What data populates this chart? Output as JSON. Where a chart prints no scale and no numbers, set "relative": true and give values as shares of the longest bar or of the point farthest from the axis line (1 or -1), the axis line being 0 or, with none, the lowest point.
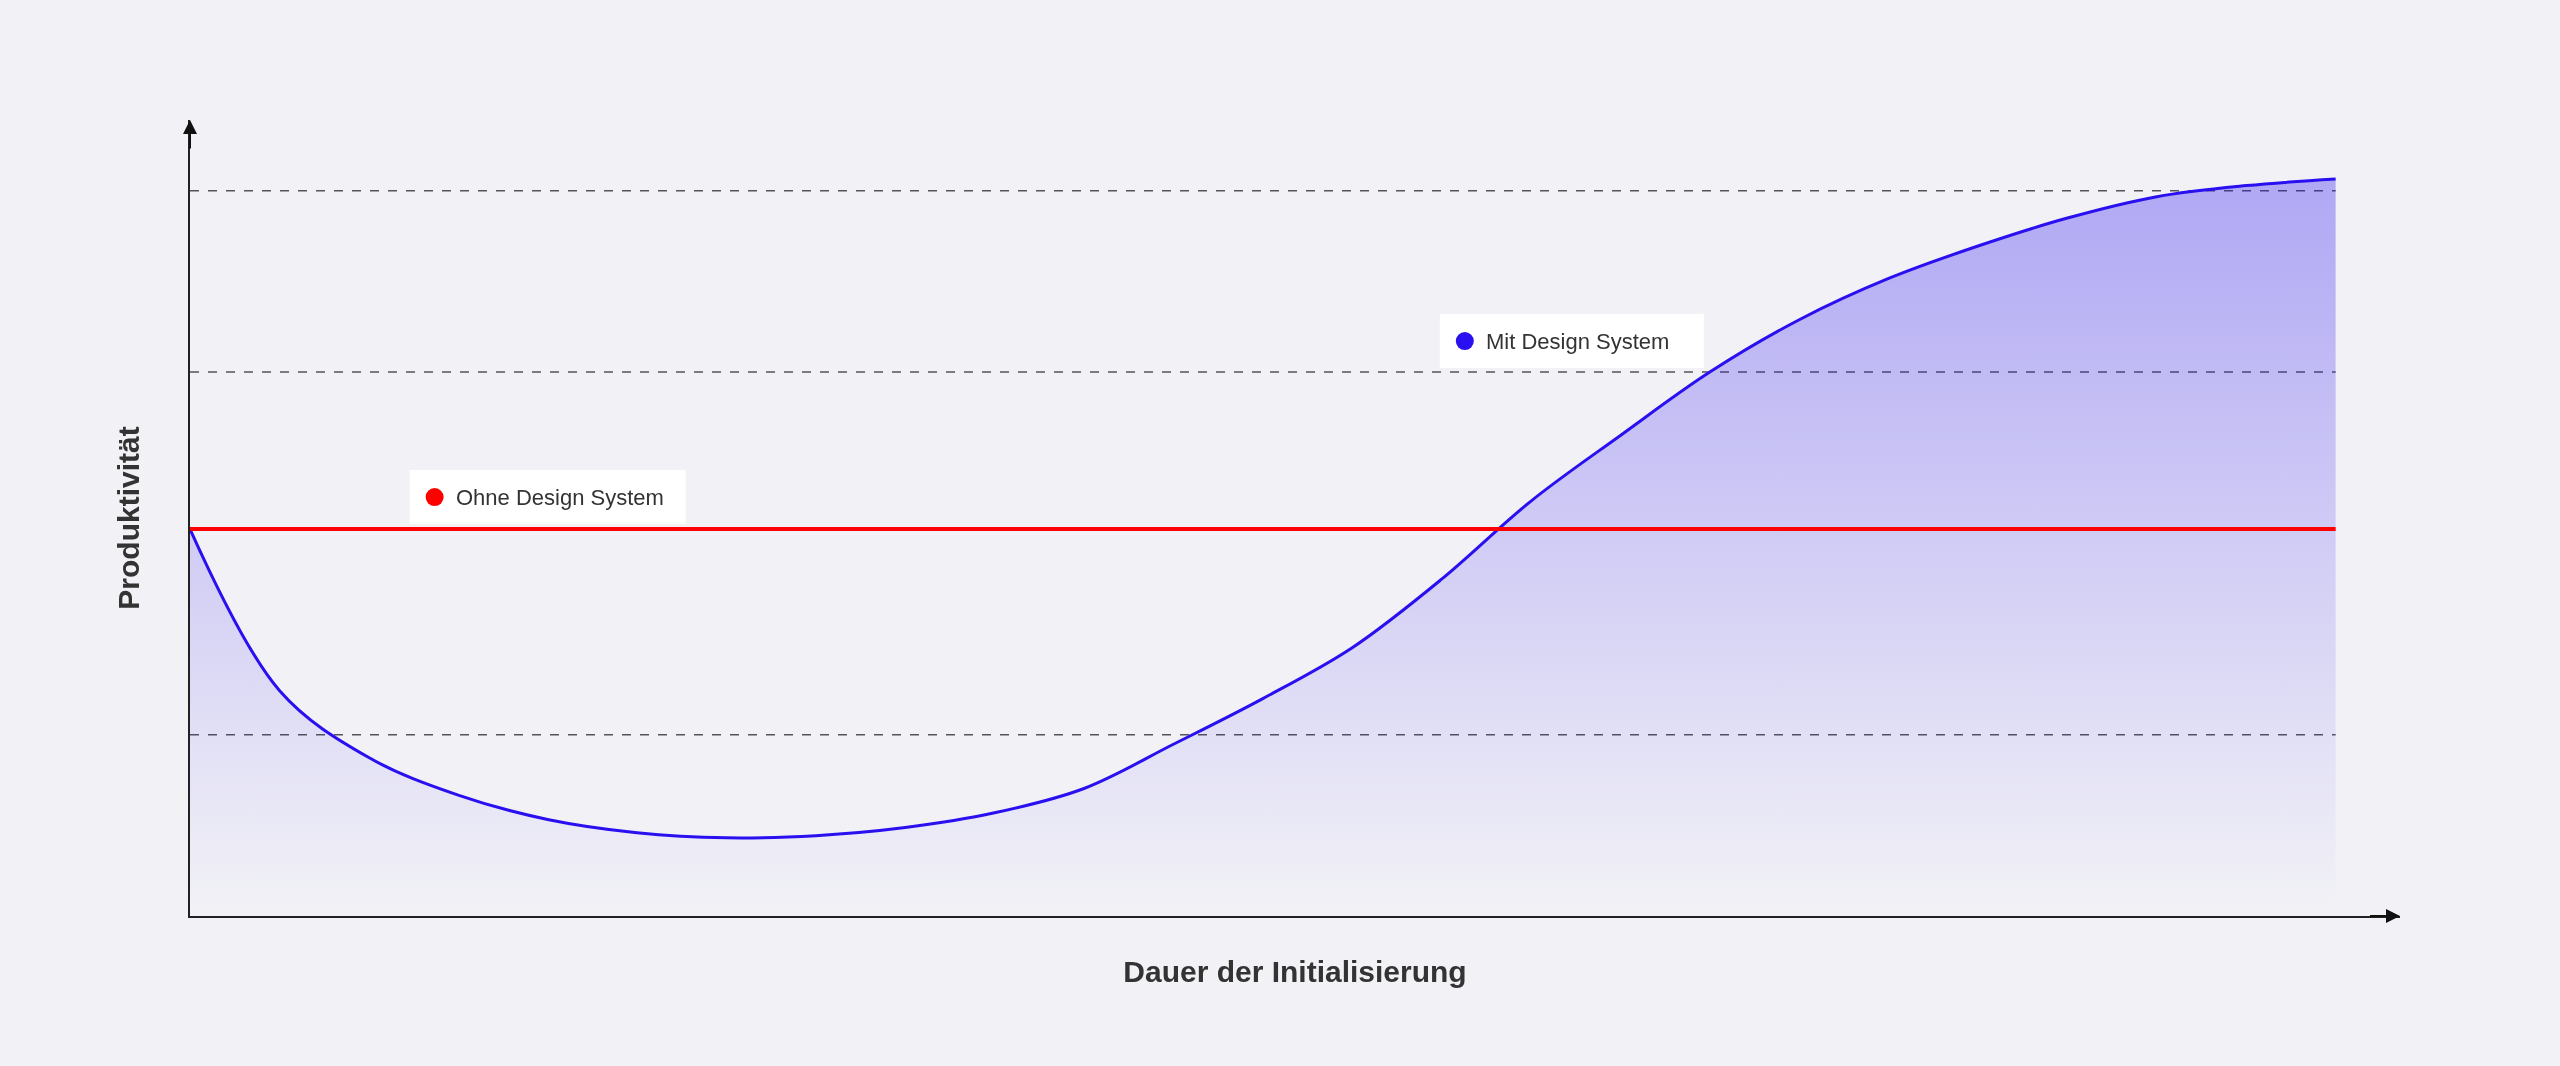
{
  "chart_data": {
    "type": "area",
    "relative": true,
    "xlabel": "Dauer der Initialisierung",
    "ylabel": "Produktivität",
    "categories": [
      null,
      null,
      null,
      null,
      null,
      null,
      null,
      null,
      null,
      null,
      null,
      null,
      null,
      null,
      null,
      null,
      null,
      null,
      null,
      null,
      null,
      null,
      null,
      null,
      null
    ],
    "series": [
      {
        "name": "Mit Design System",
        "color": "#2a10f0",
        "values": [
          0.525,
          0.306,
          0.215,
          0.164,
          0.131,
          0.113,
          0.106,
          0.109,
          0.12,
          0.14,
          0.173,
          0.233,
          0.295,
          0.364,
          0.457,
          0.563,
          0.652,
          0.738,
          0.809,
          0.865,
          0.909,
          0.947,
          0.976,
          0.991,
          1.0
        ]
      },
      {
        "name": "Ohne Design System",
        "type": "line",
        "color": "#ff0000",
        "values": [
          0.525,
          0.525,
          0.525,
          0.525,
          0.525,
          0.525,
          0.525,
          0.525,
          0.525,
          0.525,
          0.525,
          0.525,
          0.525,
          0.525,
          0.525,
          0.525,
          0.525,
          0.525,
          0.525,
          0.525,
          0.525,
          0.525,
          0.525,
          0.525,
          0.525
        ]
      }
    ],
    "ref_lines": [
      {
        "axis": "y",
        "value": 0.984,
        "color": "#555555",
        "line_style": "dashed"
      },
      {
        "axis": "y",
        "value": 0.738,
        "color": "#555555",
        "line_style": "dashed"
      },
      {
        "axis": "y",
        "value": 0.246,
        "color": "#555555",
        "line_style": "dashed"
      }
    ],
    "legend": "top left",
    "grid": false
  }
}
